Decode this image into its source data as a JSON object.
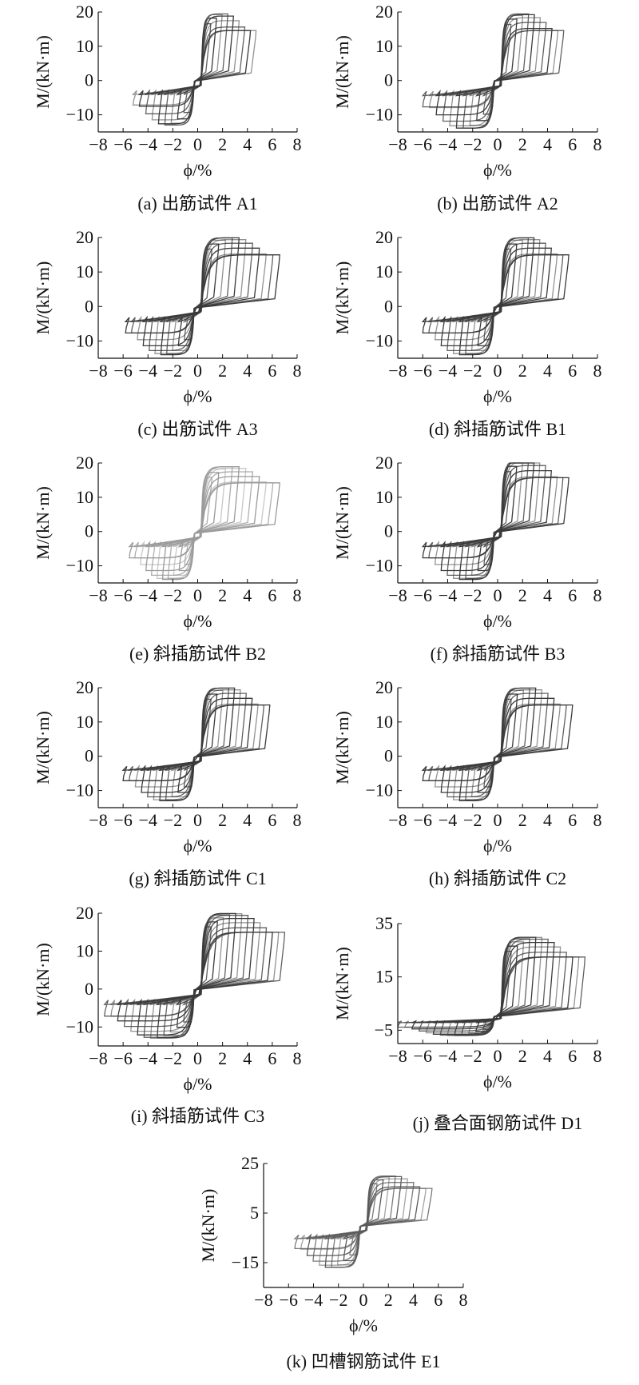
{
  "chart_data": [
    {
      "id": "a",
      "type": "line",
      "caption": "(a) 出筋试件 A1",
      "xlabel": "ϕ/%",
      "ylabel": "M/(kN·m)",
      "xlim": [
        -8,
        8
      ],
      "ylim": [
        -15,
        20
      ],
      "xticks": [
        -8,
        -6,
        -4,
        -2,
        0,
        2,
        4,
        6,
        8
      ],
      "yticks": [
        -10,
        0,
        10,
        20
      ],
      "curve_color": "#3a3a3a",
      "envelope": {
        "x_min": -5.2,
        "x_max": 4.7,
        "m_pos_max": 19.5,
        "m_neg_min": -13
      },
      "n_loops": 9
    },
    {
      "id": "b",
      "type": "line",
      "caption": "(b) 出筋试件 A2",
      "xlabel": "ϕ/%",
      "ylabel": "M/(kN·m)",
      "xlim": [
        -8,
        8
      ],
      "ylim": [
        -15,
        20
      ],
      "xticks": [
        -8,
        -6,
        -4,
        -2,
        0,
        2,
        4,
        6,
        8
      ],
      "yticks": [
        -10,
        0,
        10,
        20
      ],
      "curve_color": "#3a3a3a",
      "envelope": {
        "x_min": -6.0,
        "x_max": 5.3,
        "m_pos_max": 19.5,
        "m_neg_min": -14
      },
      "n_loops": 10
    },
    {
      "id": "c",
      "type": "line",
      "caption": "(c) 出筋试件 A3",
      "xlabel": "ϕ/%",
      "ylabel": "M/(kN·m)",
      "xlim": [
        -8,
        8
      ],
      "ylim": [
        -15,
        20
      ],
      "xticks": [
        -8,
        -6,
        -4,
        -2,
        0,
        2,
        4,
        6,
        8
      ],
      "yticks": [
        -10,
        0,
        10,
        20
      ],
      "curve_color": "#3a3a3a",
      "envelope": {
        "x_min": -5.8,
        "x_max": 6.6,
        "m_pos_max": 20,
        "m_neg_min": -14
      },
      "n_loops": 11
    },
    {
      "id": "d",
      "type": "line",
      "caption": "(d) 斜插筋试件 B1",
      "xlabel": "ϕ/%",
      "ylabel": "M/(kN·m)",
      "xlim": [
        -8,
        8
      ],
      "ylim": [
        -15,
        20
      ],
      "xticks": [
        -8,
        -6,
        -4,
        -2,
        0,
        2,
        4,
        6,
        8
      ],
      "yticks": [
        -10,
        0,
        10,
        20
      ],
      "curve_color": "#3a3a3a",
      "envelope": {
        "x_min": -6.0,
        "x_max": 5.7,
        "m_pos_max": 20,
        "m_neg_min": -14
      },
      "n_loops": 11
    },
    {
      "id": "e",
      "type": "line",
      "caption": "(e) 斜插筋试件 B2",
      "xlabel": "ϕ/%",
      "ylabel": "M/(kN·m)",
      "xlim": [
        -8,
        8
      ],
      "ylim": [
        -15,
        20
      ],
      "xticks": [
        -8,
        -6,
        -4,
        -2,
        0,
        2,
        4,
        6,
        8
      ],
      "yticks": [
        -10,
        0,
        10,
        20
      ],
      "curve_color": "#9a9a9a",
      "envelope": {
        "x_min": -5.5,
        "x_max": 6.6,
        "m_pos_max": 19,
        "m_neg_min": -14
      },
      "n_loops": 11
    },
    {
      "id": "f",
      "type": "line",
      "caption": "(f) 斜插筋试件 B3",
      "xlabel": "ϕ/%",
      "ylabel": "M/(kN·m)",
      "xlim": [
        -8,
        8
      ],
      "ylim": [
        -15,
        20
      ],
      "xticks": [
        -8,
        -6,
        -4,
        -2,
        0,
        2,
        4,
        6,
        8
      ],
      "yticks": [
        -10,
        0,
        10,
        20
      ],
      "curve_color": "#3a3a3a",
      "envelope": {
        "x_min": -6.0,
        "x_max": 5.7,
        "m_pos_max": 21,
        "m_neg_min": -14
      },
      "n_loops": 11
    },
    {
      "id": "g",
      "type": "line",
      "caption": "(g) 斜插筋试件 C1",
      "xlabel": "ϕ/%",
      "ylabel": "M/(kN·m)",
      "xlim": [
        -8,
        8
      ],
      "ylim": [
        -15,
        20
      ],
      "xticks": [
        -8,
        -6,
        -4,
        -2,
        0,
        2,
        4,
        6,
        8
      ],
      "yticks": [
        -10,
        0,
        10,
        20
      ],
      "curve_color": "#3a3a3a",
      "envelope": {
        "x_min": -6.0,
        "x_max": 5.8,
        "m_pos_max": 20,
        "m_neg_min": -13
      },
      "n_loops": 11
    },
    {
      "id": "h",
      "type": "line",
      "caption": "(h) 斜插筋试件 C2",
      "xlabel": "ϕ/%",
      "ylabel": "M/(kN·m)",
      "xlim": [
        -8,
        8
      ],
      "ylim": [
        -15,
        20
      ],
      "xticks": [
        -8,
        -6,
        -4,
        -2,
        0,
        2,
        4,
        6,
        8
      ],
      "yticks": [
        -10,
        0,
        10,
        20
      ],
      "curve_color": "#3a3a3a",
      "envelope": {
        "x_min": -6.0,
        "x_max": 6.0,
        "m_pos_max": 20,
        "m_neg_min": -13
      },
      "n_loops": 11
    },
    {
      "id": "i",
      "type": "line",
      "caption": "(i) 斜插筋试件 C3",
      "xlabel": "ϕ/%",
      "ylabel": "M/(kN·m)",
      "xlim": [
        -8,
        8
      ],
      "ylim": [
        -15,
        20
      ],
      "xticks": [
        -8,
        -6,
        -4,
        -2,
        0,
        2,
        4,
        6,
        8
      ],
      "yticks": [
        -10,
        0,
        10,
        20
      ],
      "curve_color": "#3a3a3a",
      "envelope": {
        "x_min": -7.5,
        "x_max": 7.0,
        "m_pos_max": 20,
        "m_neg_min": -13
      },
      "n_loops": 13
    },
    {
      "id": "j",
      "type": "line",
      "caption": "(j) 叠合面钢筋试件 D1",
      "xlabel": "ϕ/%",
      "ylabel": "M/(kN·m)",
      "xlim": [
        -8,
        8
      ],
      "ylim": [
        -10,
        35
      ],
      "xticks": [
        -8,
        -6,
        -4,
        -2,
        0,
        2,
        4,
        6,
        8
      ],
      "yticks": [
        -5,
        15,
        35
      ],
      "curve_color": "#3a3a3a",
      "envelope": {
        "x_min": -8.0,
        "x_max": 7.0,
        "m_pos_max": 30,
        "m_neg_min": -7
      },
      "n_loops": 13
    },
    {
      "id": "k",
      "type": "line",
      "caption": "(k) 凹槽钢筋试件 E1",
      "xlabel": "ϕ/%",
      "ylabel": "M/(kN·m)",
      "xlim": [
        -8,
        8
      ],
      "ylim": [
        -25,
        25
      ],
      "xticks": [
        -8,
        -6,
        -4,
        -2,
        0,
        2,
        4,
        6,
        8
      ],
      "yticks": [
        -15,
        5,
        25
      ],
      "curve_color": "#5a5a5a",
      "envelope": {
        "x_min": -5.5,
        "x_max": 5.5,
        "m_pos_max": 20,
        "m_neg_min": -17
      },
      "n_loops": 10
    }
  ]
}
